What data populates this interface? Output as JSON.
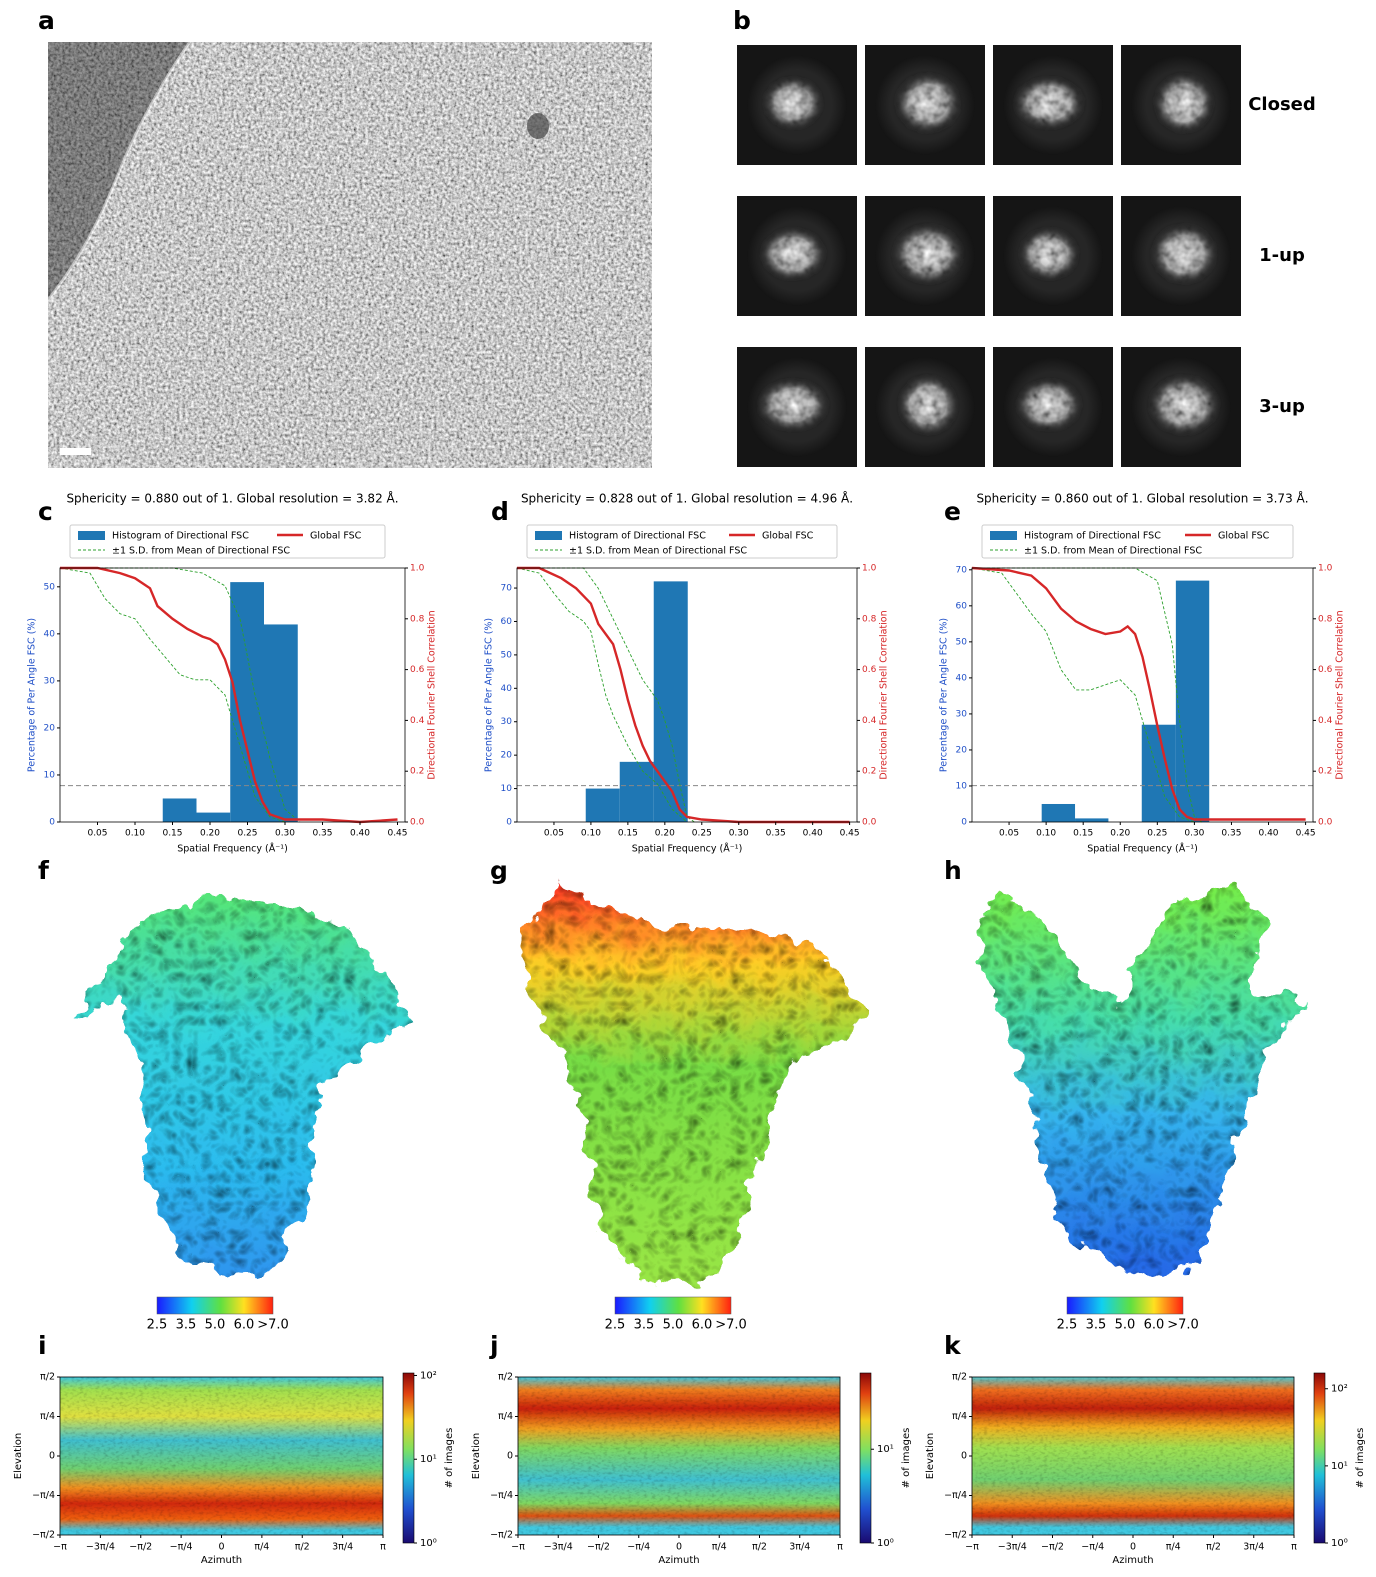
{
  "panel_labels": [
    "a",
    "b",
    "c",
    "d",
    "e",
    "f",
    "g",
    "h",
    "i",
    "j",
    "k"
  ],
  "class_labels": [
    "Closed",
    "1-up",
    "3-up"
  ],
  "colorbar_labels": [
    [
      "2.5",
      "3.5",
      "5.0",
      "6.0",
      ">7.0"
    ],
    [
      "2.5",
      "3.5",
      "5.0",
      "6.0",
      ">7.0"
    ],
    [
      "2.5",
      "3.5",
      "5.0",
      "6.0",
      ">7.0"
    ]
  ],
  "chart_data": [
    {
      "type": "fsc",
      "title": "Sphericity = 0.880 out of 1. Global resolution = 3.82 Å.",
      "x_label": "Spatial Frequency (Å⁻¹)",
      "y_label": "Percentage of Per Angle FSC (%)",
      "y2_label": "Directional Fourier Shell Correlation",
      "xlim": [
        0,
        0.46
      ],
      "ylim": [
        0,
        54
      ],
      "y2lim": [
        0,
        1
      ],
      "xticks": [
        0.05,
        {
          "value": 0.1,
          "label": "0.10"
        },
        0.15,
        {
          "value": 0.2,
          "label": "0.20"
        },
        0.25,
        {
          "value": 0.3,
          "label": "0.30"
        },
        0.35,
        {
          "value": 0.4,
          "label": "0.40"
        },
        0.45
      ],
      "yticks": [
        0,
        10,
        20,
        30,
        40,
        50
      ],
      "y2ticks": [
        {
          "value": 0,
          "label": "0.0"
        },
        0.2,
        0.4,
        0.6,
        0.8,
        {
          "value": 1,
          "label": "1.0"
        }
      ],
      "histogram": {
        "name": "Histogram of Directional FSC",
        "color": "#1f77b4",
        "bins": [
          0.137,
          0.182,
          0.227,
          0.272,
          0.317
        ],
        "values": [
          5,
          2,
          51,
          42
        ]
      },
      "series": [
        {
          "name": "Global FSC",
          "color": "#d62728",
          "axis": "y2",
          "x": [
            0,
            0.05,
            0.08,
            0.1,
            0.12,
            0.13,
            0.15,
            0.17,
            0.19,
            0.2,
            0.21,
            0.22,
            0.23,
            0.24,
            0.25,
            0.26,
            0.27,
            0.28,
            0.3,
            0.35,
            0.4,
            0.45
          ],
          "values": [
            1,
            1,
            0.98,
            0.96,
            0.92,
            0.85,
            0.8,
            0.76,
            0.73,
            0.72,
            0.7,
            0.64,
            0.55,
            0.4,
            0.28,
            0.16,
            0.08,
            0.03,
            0.01,
            0.01,
            0,
            0.01
          ]
        }
      ],
      "sd": {
        "name": "±1 S.D. from Mean of Directional FSC",
        "color": "#2ca02c",
        "upper": {
          "x": [
            0,
            0.15,
            0.19,
            0.22,
            0.24,
            0.26,
            0.28,
            0.3,
            0.32
          ],
          "values": [
            1,
            1,
            0.98,
            0.93,
            0.8,
            0.5,
            0.25,
            0.05,
            0
          ]
        },
        "lower": {
          "x": [
            0,
            0.04,
            0.06,
            0.08,
            0.1,
            0.12,
            0.14,
            0.16,
            0.18,
            0.2,
            0.22,
            0.24,
            0.26,
            0.28,
            0.3
          ],
          "values": [
            1,
            0.98,
            0.88,
            0.82,
            0.8,
            0.72,
            0.65,
            0.58,
            0.56,
            0.56,
            0.5,
            0.3,
            0.1,
            0.02,
            0
          ]
        }
      },
      "threshold": 0.143
    },
    {
      "type": "fsc",
      "title": "Sphericity = 0.828 out of 1. Global resolution = 4.96 Å.",
      "x_label": "Spatial Frequency (Å⁻¹)",
      "y_label": "Percentage of Per Angle FSC (%)",
      "y2_label": "Directional Fourier Shell Correlation",
      "xlim": [
        0,
        0.46
      ],
      "ylim": [
        0,
        76
      ],
      "y2lim": [
        0,
        1
      ],
      "xticks": [
        0.05,
        {
          "value": 0.1,
          "label": "0.10"
        },
        0.15,
        {
          "value": 0.2,
          "label": "0.20"
        },
        0.25,
        {
          "value": 0.3,
          "label": "0.30"
        },
        0.35,
        {
          "value": 0.4,
          "label": "0.40"
        },
        0.45
      ],
      "yticks": [
        0,
        10,
        20,
        30,
        40,
        50,
        60,
        70
      ],
      "y2ticks": [
        {
          "value": 0,
          "label": "0.0"
        },
        0.2,
        0.4,
        0.6,
        0.8,
        {
          "value": 1,
          "label": "1.0"
        }
      ],
      "histogram": {
        "name": "Histogram of Directional FSC",
        "color": "#1f77b4",
        "bins": [
          0.093,
          0.139,
          0.185,
          0.231
        ],
        "values": [
          10,
          18,
          72
        ]
      },
      "series": [
        {
          "name": "Global FSC",
          "color": "#d62728",
          "axis": "y2",
          "x": [
            0,
            0.03,
            0.06,
            0.08,
            0.1,
            0.11,
            0.13,
            0.14,
            0.15,
            0.16,
            0.17,
            0.18,
            0.19,
            0.2,
            0.21,
            0.22,
            0.23,
            0.25,
            0.3,
            0.45
          ],
          "values": [
            1,
            1,
            0.96,
            0.92,
            0.86,
            0.78,
            0.7,
            0.6,
            0.48,
            0.38,
            0.3,
            0.24,
            0.2,
            0.16,
            0.12,
            0.05,
            0.02,
            0.01,
            0,
            0
          ]
        }
      ],
      "sd": {
        "name": "±1 S.D. from Mean of Directional FSC",
        "color": "#2ca02c",
        "upper": {
          "x": [
            0,
            0.09,
            0.11,
            0.13,
            0.15,
            0.17,
            0.19,
            0.2,
            0.21,
            0.22,
            0.23,
            0.24
          ],
          "values": [
            1,
            1,
            0.92,
            0.8,
            0.68,
            0.56,
            0.48,
            0.4,
            0.3,
            0.15,
            0.02,
            0
          ]
        },
        "lower": {
          "x": [
            0,
            0.03,
            0.05,
            0.07,
            0.09,
            0.1,
            0.11,
            0.12,
            0.13,
            0.15,
            0.17,
            0.19,
            0.21,
            0.23
          ],
          "values": [
            1,
            0.98,
            0.9,
            0.83,
            0.79,
            0.75,
            0.62,
            0.5,
            0.42,
            0.3,
            0.2,
            0.15,
            0.05,
            0
          ]
        }
      },
      "threshold": 0.143
    },
    {
      "type": "fsc",
      "title": "Sphericity = 0.860 out of 1. Global resolution = 3.73 Å.",
      "x_label": "Spatial Frequency (Å⁻¹)",
      "y_label": "Percentage of Per Angle FSC (%)",
      "y2_label": "Directional Fourier Shell Correlation",
      "xlim": [
        0,
        0.46
      ],
      "ylim": [
        0,
        70.5
      ],
      "y2lim": [
        0,
        1
      ],
      "xticks": [
        0.05,
        {
          "value": 0.1,
          "label": "0.10"
        },
        0.15,
        {
          "value": 0.2,
          "label": "0.20"
        },
        0.25,
        {
          "value": 0.3,
          "label": "0.30"
        },
        0.35,
        {
          "value": 0.4,
          "label": "0.40"
        },
        0.45
      ],
      "yticks": [
        0,
        10,
        20,
        30,
        40,
        50,
        60,
        70
      ],
      "y2ticks": [
        {
          "value": 0,
          "label": "0.0"
        },
        0.2,
        0.4,
        0.6,
        0.8,
        {
          "value": 1,
          "label": "1.0"
        }
      ],
      "histogram": {
        "name": "Histogram of Directional FSC",
        "color": "#1f77b4",
        "bins": [
          0.094,
          0.139,
          0.184,
          0.229,
          0.275,
          0.32
        ],
        "values": [
          5,
          1,
          0,
          27,
          67
        ]
      },
      "series": [
        {
          "name": "Global FSC",
          "color": "#d62728",
          "axis": "y2",
          "x": [
            0,
            0.05,
            0.08,
            0.1,
            0.12,
            0.14,
            0.16,
            0.18,
            0.2,
            0.21,
            0.22,
            0.23,
            0.24,
            0.25,
            0.26,
            0.27,
            0.28,
            0.29,
            0.3,
            0.45
          ],
          "values": [
            1,
            0.99,
            0.97,
            0.92,
            0.84,
            0.79,
            0.76,
            0.74,
            0.75,
            0.77,
            0.74,
            0.65,
            0.52,
            0.38,
            0.25,
            0.13,
            0.05,
            0.02,
            0.01,
            0.01
          ]
        }
      ],
      "sd": {
        "name": "±1 S.D. from Mean of Directional FSC",
        "color": "#2ca02c",
        "upper": {
          "x": [
            0,
            0.22,
            0.25,
            0.27,
            0.28,
            0.29,
            0.3,
            0.31
          ],
          "values": [
            1,
            1,
            0.95,
            0.7,
            0.4,
            0.15,
            0.02,
            0
          ]
        },
        "lower": {
          "x": [
            0,
            0.04,
            0.06,
            0.08,
            0.1,
            0.12,
            0.14,
            0.16,
            0.18,
            0.2,
            0.22,
            0.24,
            0.26,
            0.28,
            0.3
          ],
          "values": [
            1,
            0.98,
            0.9,
            0.82,
            0.75,
            0.6,
            0.52,
            0.52,
            0.54,
            0.56,
            0.5,
            0.3,
            0.1,
            0.02,
            0
          ]
        }
      },
      "threshold": 0.143
    },
    {
      "type": "hexbin",
      "x_label": "Azimuth",
      "y_label": "Elevation",
      "colorbar_label": "# of images",
      "xlim": [
        -3.1416,
        3.1416
      ],
      "ylim": [
        -1.5708,
        1.5708
      ],
      "xticks": [
        {
          "value": -3.1416,
          "label": "−π"
        },
        {
          "value": -2.3562,
          "label": "−3π/4"
        },
        {
          "value": -1.5708,
          "label": "−π/2"
        },
        {
          "value": -0.7854,
          "label": "−π/4"
        },
        0,
        {
          "value": 0.7854,
          "label": "π/4"
        },
        {
          "value": 1.5708,
          "label": "π/2"
        },
        {
          "value": 2.3562,
          "label": "3π/4"
        },
        {
          "value": 3.1416,
          "label": "π"
        }
      ],
      "yticks": [
        {
          "value": -1.5708,
          "label": "−π/2"
        },
        {
          "value": -0.7854,
          "label": "−π/4"
        },
        0,
        {
          "value": 0.7854,
          "label": "π/4"
        },
        {
          "value": 1.5708,
          "label": "π/2"
        }
      ],
      "clim": [
        1,
        107
      ],
      "log_color": true,
      "cticks": [
        {
          "value": 1,
          "label": "10⁰"
        },
        {
          "value": 10,
          "label": "10¹"
        },
        {
          "value": 100,
          "label": "10²"
        }
      ]
    },
    {
      "type": "hexbin",
      "x_label": "Azimuth",
      "y_label": "Elevation",
      "colorbar_label": "# of images",
      "xlim": [
        -3.1416,
        3.1416
      ],
      "ylim": [
        -1.5708,
        1.5708
      ],
      "xticks": [
        {
          "value": -3.1416,
          "label": "−π"
        },
        {
          "value": -2.3562,
          "label": "−3π/4"
        },
        {
          "value": -1.5708,
          "label": "−π/2"
        },
        {
          "value": -0.7854,
          "label": "−π/4"
        },
        0,
        {
          "value": 0.7854,
          "label": "π/4"
        },
        {
          "value": 1.5708,
          "label": "π/2"
        },
        {
          "value": 2.3562,
          "label": "3π/4"
        },
        {
          "value": 3.1416,
          "label": "π"
        }
      ],
      "yticks": [
        {
          "value": -1.5708,
          "label": "−π/2"
        },
        {
          "value": -0.7854,
          "label": "−π/4"
        },
        0,
        {
          "value": 0.7854,
          "label": "π/4"
        },
        {
          "value": 1.5708,
          "label": "π/2"
        }
      ],
      "clim": [
        1,
        65
      ],
      "log_color": true,
      "cticks": [
        {
          "value": 1,
          "label": "10⁰"
        },
        {
          "value": 10,
          "label": "10¹"
        }
      ]
    },
    {
      "type": "hexbin",
      "x_label": "Azimuth",
      "y_label": "Elevation",
      "colorbar_label": "# of images",
      "xlim": [
        -3.1416,
        3.1416
      ],
      "ylim": [
        -1.5708,
        1.5708
      ],
      "xticks": [
        {
          "value": -3.1416,
          "label": "−π"
        },
        {
          "value": -2.3562,
          "label": "−3π/4"
        },
        {
          "value": -1.5708,
          "label": "−π/2"
        },
        {
          "value": -0.7854,
          "label": "−π/4"
        },
        0,
        {
          "value": 0.7854,
          "label": "π/4"
        },
        {
          "value": 1.5708,
          "label": "π/2"
        },
        {
          "value": 2.3562,
          "label": "3π/4"
        },
        {
          "value": 3.1416,
          "label": "π"
        }
      ],
      "yticks": [
        {
          "value": -1.5708,
          "label": "−π/2"
        },
        {
          "value": -0.7854,
          "label": "−π/4"
        },
        0,
        {
          "value": 0.7854,
          "label": "π/4"
        },
        {
          "value": 1.5708,
          "label": "π/2"
        }
      ],
      "clim": [
        1,
        160
      ],
      "log_color": true,
      "cticks": [
        {
          "value": 1,
          "label": "10⁰"
        },
        {
          "value": 10,
          "label": "10¹"
        },
        {
          "value": 100,
          "label": "10²"
        }
      ]
    }
  ]
}
